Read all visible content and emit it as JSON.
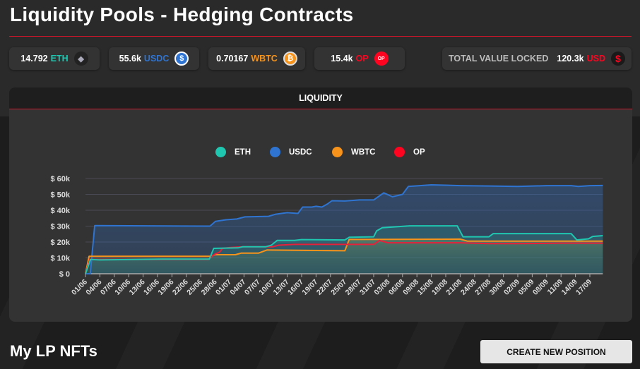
{
  "title": "Liquidity Pools - Hedging Contracts",
  "stats": [
    {
      "value": "14.792",
      "unit": "ETH",
      "color": "#1fc7b1",
      "icon": "eth-icon"
    },
    {
      "value": "55.6k",
      "unit": "USDC",
      "color": "#2f74d0",
      "icon": "usdc-icon"
    },
    {
      "value": "0.70167",
      "unit": "WBTC",
      "color": "#f7931a",
      "icon": "btc-icon"
    },
    {
      "value": "15.4k",
      "unit": "OP",
      "color": "#ff0420",
      "icon": "op-icon",
      "icon_text": "OP"
    }
  ],
  "tvl": {
    "label": "TOTAL VALUE LOCKED",
    "value": "120.3k",
    "unit": "USD",
    "icon": "dollar-icon",
    "icon_text": "$"
  },
  "chart_header": "LIQUIDITY",
  "chart_data": {
    "type": "area",
    "title": "LIQUIDITY",
    "legend_position": "top",
    "ylabel_ticks": [
      "$ 0",
      "$ 10k",
      "$ 20k",
      "$ 30k",
      "$ 40k",
      "$ 50k",
      "$ 60k"
    ],
    "ylim": [
      0,
      60
    ],
    "y_unit": "k USD",
    "categories": [
      "01/06",
      "04/06",
      "07/06",
      "10/06",
      "13/06",
      "16/06",
      "19/06",
      "22/06",
      "25/06",
      "28/06",
      "01/07",
      "04/07",
      "07/07",
      "10/07",
      "13/07",
      "16/07",
      "19/07",
      "22/07",
      "25/07",
      "28/07",
      "31/07",
      "03/08",
      "06/08",
      "09/08",
      "15/08",
      "18/08",
      "21/08",
      "24/08",
      "27/08",
      "30/08",
      "02/09",
      "05/09",
      "08/09",
      "11/09",
      "14/09",
      "17/09"
    ],
    "x_note": "x values are category index positions",
    "series": [
      {
        "name": "USDC",
        "color": "#2f74d0",
        "points": [
          [
            0,
            0
          ],
          [
            0.33,
            0
          ],
          [
            0.64,
            30.3
          ],
          [
            8.64,
            30
          ],
          [
            9.02,
            33
          ],
          [
            9.75,
            34
          ],
          [
            10.5,
            34.5
          ],
          [
            11.06,
            35.8
          ],
          [
            12.7,
            36.2
          ],
          [
            13.2,
            37.5
          ],
          [
            14,
            38.5
          ],
          [
            14.74,
            38
          ],
          [
            15.07,
            42
          ],
          [
            15.7,
            42
          ],
          [
            16,
            42.5
          ],
          [
            16.4,
            42
          ],
          [
            16.8,
            44
          ],
          [
            17.1,
            46
          ],
          [
            18,
            45.8
          ],
          [
            19,
            46.5
          ],
          [
            20,
            46.5
          ],
          [
            20.7,
            51
          ],
          [
            21.3,
            48.5
          ],
          [
            22,
            50
          ],
          [
            22.4,
            55
          ],
          [
            24,
            56
          ],
          [
            26,
            55.5
          ],
          [
            28,
            55.3
          ],
          [
            30,
            55
          ],
          [
            32,
            55.5
          ],
          [
            33.7,
            55.5
          ],
          [
            34.2,
            55
          ],
          [
            35,
            55.5
          ],
          [
            35.9,
            55.6
          ]
        ]
      },
      {
        "name": "WBTC",
        "color": "#f7931a",
        "points": [
          [
            0,
            0
          ],
          [
            0.25,
            11
          ],
          [
            8.7,
            11
          ],
          [
            9,
            12
          ],
          [
            10.4,
            12
          ],
          [
            10.8,
            13
          ],
          [
            12,
            13
          ],
          [
            12.6,
            15
          ],
          [
            18,
            14.5
          ],
          [
            18.3,
            21.6
          ],
          [
            26,
            21.8
          ],
          [
            26.5,
            20.6
          ],
          [
            35.9,
            20.6
          ]
        ]
      },
      {
        "name": "OP",
        "color": "#e8203a",
        "points": [
          [
            0,
            0
          ],
          [
            0.3,
            9
          ],
          [
            8.5,
            9
          ],
          [
            9,
            12.5
          ],
          [
            9.3,
            13.5
          ],
          [
            9.5,
            16
          ],
          [
            10,
            16.5
          ],
          [
            11,
            17
          ],
          [
            13,
            17
          ],
          [
            13.4,
            18
          ],
          [
            14.5,
            18.5
          ],
          [
            18,
            18.5
          ],
          [
            20,
            18.5
          ],
          [
            20.4,
            21
          ],
          [
            21,
            19.5
          ],
          [
            26,
            19.5
          ],
          [
            28,
            19
          ],
          [
            30,
            19
          ],
          [
            33,
            19.3
          ],
          [
            35.9,
            19.3
          ]
        ]
      },
      {
        "name": "ETH",
        "color": "#1fc7b1",
        "points": [
          [
            0,
            0
          ],
          [
            0.35,
            9
          ],
          [
            1,
            8.7
          ],
          [
            5.3,
            9.2
          ],
          [
            8.6,
            9.2
          ],
          [
            8.9,
            16
          ],
          [
            10.6,
            16.3
          ],
          [
            10.9,
            17
          ],
          [
            12.5,
            17
          ],
          [
            12.9,
            18
          ],
          [
            13.3,
            21
          ],
          [
            14.5,
            21
          ],
          [
            15,
            21.5
          ],
          [
            18,
            21.3
          ],
          [
            18.3,
            23
          ],
          [
            20,
            23.3
          ],
          [
            20.2,
            27
          ],
          [
            20.6,
            29
          ],
          [
            22.5,
            30.2
          ],
          [
            25.8,
            30.2
          ],
          [
            26.2,
            23.3
          ],
          [
            28,
            23.3
          ],
          [
            28.3,
            25.3
          ],
          [
            33.7,
            25.3
          ],
          [
            34.1,
            21.3
          ],
          [
            34.9,
            22
          ],
          [
            35.2,
            23.5
          ],
          [
            35.9,
            24
          ]
        ]
      }
    ]
  },
  "legend": [
    "ETH",
    "USDC",
    "WBTC",
    "OP"
  ],
  "nfts_heading": "My LP NFTs",
  "create_button": "CREATE NEW POSITION"
}
